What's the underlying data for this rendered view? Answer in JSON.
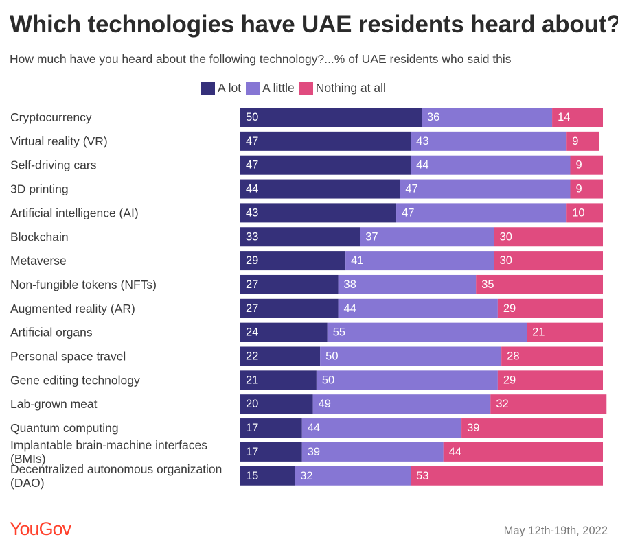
{
  "title": "Which technologies have UAE residents heard about?",
  "subtitle": "How much have you heard about the following technology?...% of UAE residents who said this",
  "source_date": "May 12th-19th, 2022",
  "logo": "YouGov",
  "colors": {
    "a_lot": "#35307a",
    "a_little": "#8676d4",
    "nothing": "#e04b7f",
    "logo": "#ff412c"
  },
  "chart_data": {
    "type": "bar",
    "orientation": "horizontal",
    "stacked": true,
    "xlim": [
      0,
      100
    ],
    "legend_position": "top",
    "categories": [
      [
        "Cryptocurrency"
      ],
      [
        "Virtual reality (VR)"
      ],
      [
        "Self-driving cars"
      ],
      [
        "3D printing"
      ],
      [
        "Artificial intelligence (AI)"
      ],
      [
        "Blockchain"
      ],
      [
        "Metaverse"
      ],
      [
        "Non-fungible tokens (NFTs)"
      ],
      [
        "Augmented reality (AR)"
      ],
      [
        "Artificial organs"
      ],
      [
        "Personal space travel"
      ],
      [
        "Gene editing technology"
      ],
      [
        "Lab-grown meat"
      ],
      [
        "Quantum computing"
      ],
      [
        "Implantable brain-machine interfaces",
        "(BMIs)"
      ],
      [
        "Decentralized autonomous organization",
        "(DAO)"
      ]
    ],
    "series": [
      {
        "name": "A lot",
        "values": [
          50,
          47,
          47,
          44,
          43,
          33,
          29,
          27,
          27,
          24,
          22,
          21,
          20,
          17,
          17,
          15
        ]
      },
      {
        "name": "A little",
        "values": [
          36,
          43,
          44,
          47,
          47,
          37,
          41,
          38,
          44,
          55,
          50,
          50,
          49,
          44,
          39,
          32
        ]
      },
      {
        "name": "Nothing at all",
        "values": [
          14,
          9,
          9,
          9,
          10,
          30,
          30,
          35,
          29,
          21,
          28,
          29,
          32,
          39,
          44,
          53
        ]
      }
    ]
  }
}
